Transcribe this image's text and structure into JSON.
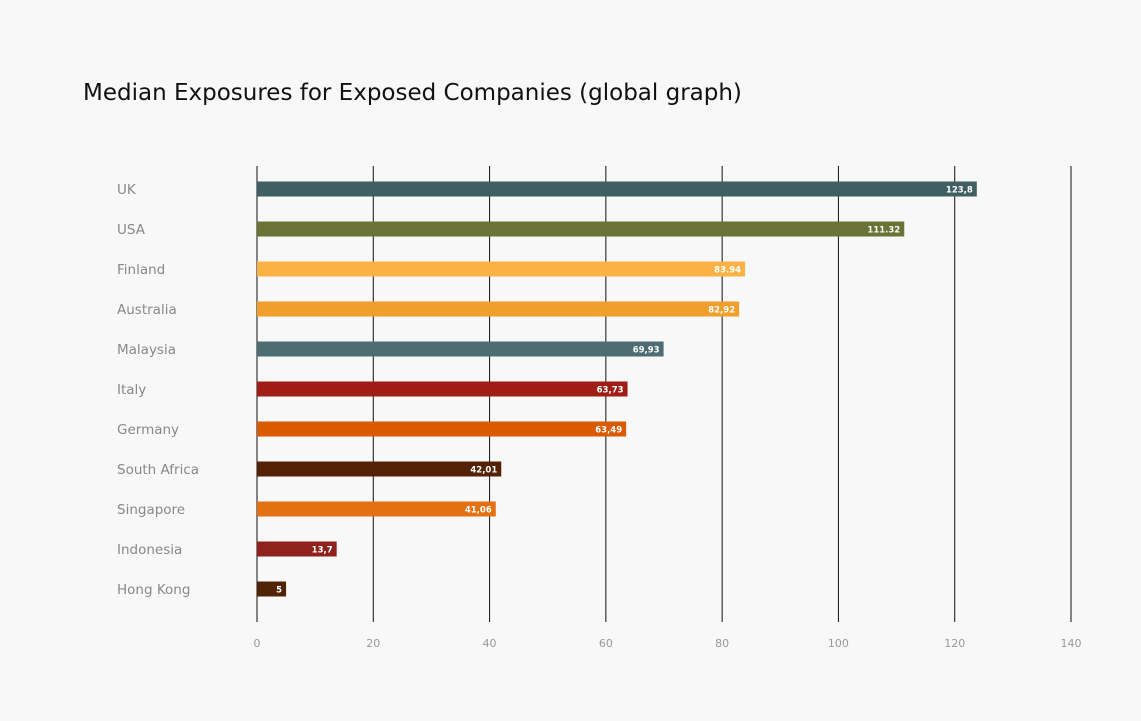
{
  "chart_data": {
    "type": "bar",
    "orientation": "horizontal",
    "title": "Median Exposures for Exposed Companies (global graph)",
    "xlabel": "",
    "ylabel": "",
    "xlim": [
      0,
      140
    ],
    "ticks": [
      0,
      20,
      40,
      60,
      80,
      100,
      120,
      140
    ],
    "tick_labels": [
      "0",
      "20",
      "40",
      "60",
      "80",
      "100",
      "120",
      "140"
    ],
    "grid": "vertical",
    "categories": [
      "UK",
      "USA",
      "Finland",
      "Australia",
      "Malaysia",
      "Italy",
      "Germany",
      "South Africa",
      "Singapore",
      "Indonesia",
      "Hong Kong"
    ],
    "values": [
      123.8,
      111.32,
      83.94,
      82.92,
      69.93,
      63.73,
      63.49,
      42.01,
      41.06,
      13.7,
      5
    ],
    "value_labels": [
      "123,8",
      "111.32",
      "83.94",
      "82,92",
      "69,93",
      "63,73",
      "63,49",
      "42,01",
      "41,06",
      "13,7",
      "5"
    ],
    "colors": [
      "#3f5f63",
      "#6a7235",
      "#fbb244",
      "#f19f2b",
      "#4d6d72",
      "#a01d15",
      "#d95a00",
      "#552105",
      "#e37012",
      "#8f221c",
      "#512305"
    ]
  }
}
